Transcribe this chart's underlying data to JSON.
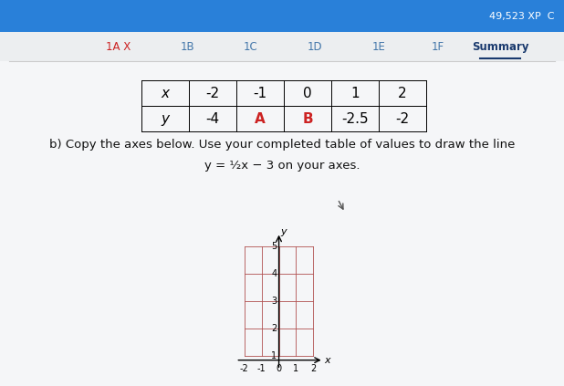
{
  "bg_color": "#e8eaed",
  "header_color": "#2980d9",
  "xp_text": "49,523 XP  C",
  "tabs": [
    "1A X",
    "1B",
    "1C",
    "1D",
    "1E",
    "1F",
    "Summary"
  ],
  "active_tab": "Summary",
  "tab_text_colors": [
    "#cc2222",
    "#4477aa",
    "#4477aa",
    "#4477aa",
    "#4477aa",
    "#4477aa",
    "#1a3a6e"
  ],
  "table_x": [
    "-2",
    "-1",
    "0",
    "1",
    "2"
  ],
  "table_y_display": [
    "-4",
    "A",
    "B",
    "-2.5",
    "-2"
  ],
  "table_y_colors": [
    "#000000",
    "#cc2222",
    "#cc2222",
    "#000000",
    "#000000"
  ],
  "body_text1": "b) Copy the axes below. Use your completed table of values to draw the line",
  "body_text2": "y = ½x − 3 on your axes.",
  "grid_color": "#b05050",
  "content_bg": "#f0f2f5"
}
